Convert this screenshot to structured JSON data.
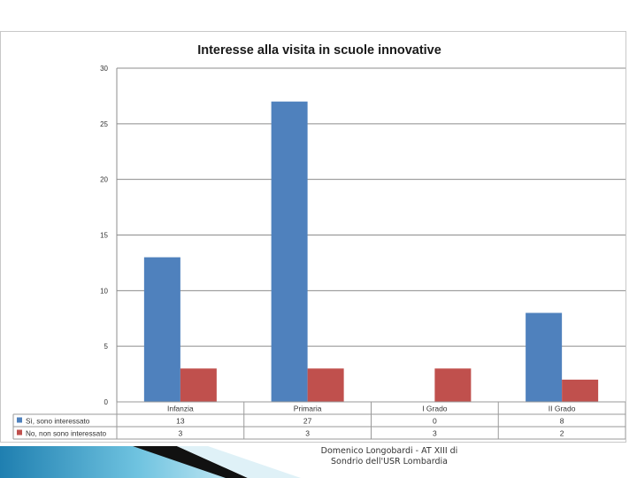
{
  "chart_data": {
    "type": "bar",
    "title": "Interesse alla visita in scuole innovative",
    "categories": [
      "Infanzia",
      "Primaria",
      "I Grado",
      "II Grado"
    ],
    "series": [
      {
        "name": "Sì, sono interessato",
        "values": [
          13,
          27,
          0,
          8
        ],
        "display": [
          "13",
          "27",
          "0",
          "8"
        ],
        "color": "#4f81bd"
      },
      {
        "name": "No, non sono interessato",
        "values": [
          3,
          3,
          3,
          2
        ],
        "display": [
          "3",
          "3",
          "3",
          "2"
        ],
        "color": "#c0504d"
      }
    ],
    "yticks": [
      "0",
      "5",
      "10",
      "15",
      "20",
      "25",
      "30"
    ],
    "ylim": [
      0,
      30
    ],
    "grid": true,
    "legend": "data-table-left"
  },
  "footer": {
    "line1": "Domenico Longobardi - AT XIII di",
    "line2": "Sondrio dell'USR Lombardia"
  }
}
